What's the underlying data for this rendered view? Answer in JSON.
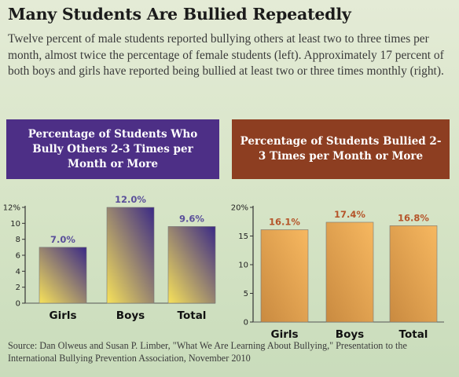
{
  "title": "Many Students Are Bullied Repeatedly",
  "intro": "Twelve percent of male students reported bullying others at least two to three times per month, almost twice the percentage of female students (left). Approximately 17 percent of both boys and girls have reported being bullied at least two or three times monthly (right).",
  "source": "Source: Dan Olweus and Susan P. Limber, \"What We Are Learning About Bullying,\" Presentation to the International Bullying Prevention Association, November 2010",
  "chart_data": [
    {
      "type": "bar",
      "title": "Percentage of Students Who Bully Others 2-3 Times per Month or More",
      "categories": [
        "Girls",
        "Boys",
        "Total"
      ],
      "values": [
        7.0,
        12.0,
        9.6
      ],
      "data_labels": [
        "7.0%",
        "12.0%",
        "9.6%"
      ],
      "ylim": [
        0,
        12
      ],
      "yticks": [
        "0",
        "2",
        "4",
        "6",
        "8",
        "10",
        "12%"
      ],
      "xlabel": "",
      "ylabel": "",
      "grid": false,
      "header_color": "#4d2f86",
      "bar_colors": [
        "#3b2a86",
        "#f7e25a"
      ]
    },
    {
      "type": "bar",
      "title": "Percentage of Students Bullied 2-3 Times per Month or More",
      "categories": [
        "Girls",
        "Boys",
        "Total"
      ],
      "values": [
        16.1,
        17.4,
        16.8
      ],
      "data_labels": [
        "16.1%",
        "17.4%",
        "16.8%"
      ],
      "ylim": [
        0,
        20
      ],
      "yticks": [
        "0",
        "5",
        "10",
        "15",
        "20%"
      ],
      "xlabel": "",
      "ylabel": "",
      "grid": false,
      "header_color": "#8d3e21",
      "bar_colors": [
        "#f7b860",
        "#c98a40"
      ]
    }
  ]
}
